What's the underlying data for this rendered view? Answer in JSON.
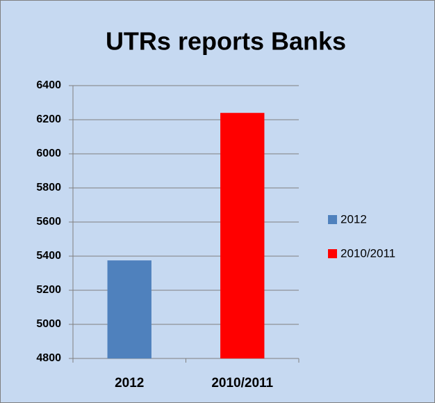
{
  "chart_data": {
    "type": "bar",
    "title": "UTRs reports Banks",
    "categories": [
      "2012",
      "2010/2011"
    ],
    "values": [
      5375,
      6240
    ],
    "colors": [
      "#4f81bd",
      "#ff0000"
    ],
    "ylim": [
      4800,
      6400
    ],
    "yticks": [
      4800,
      5000,
      5200,
      5400,
      5600,
      5800,
      6000,
      6200,
      6400
    ],
    "grid": true,
    "legend": "right"
  }
}
